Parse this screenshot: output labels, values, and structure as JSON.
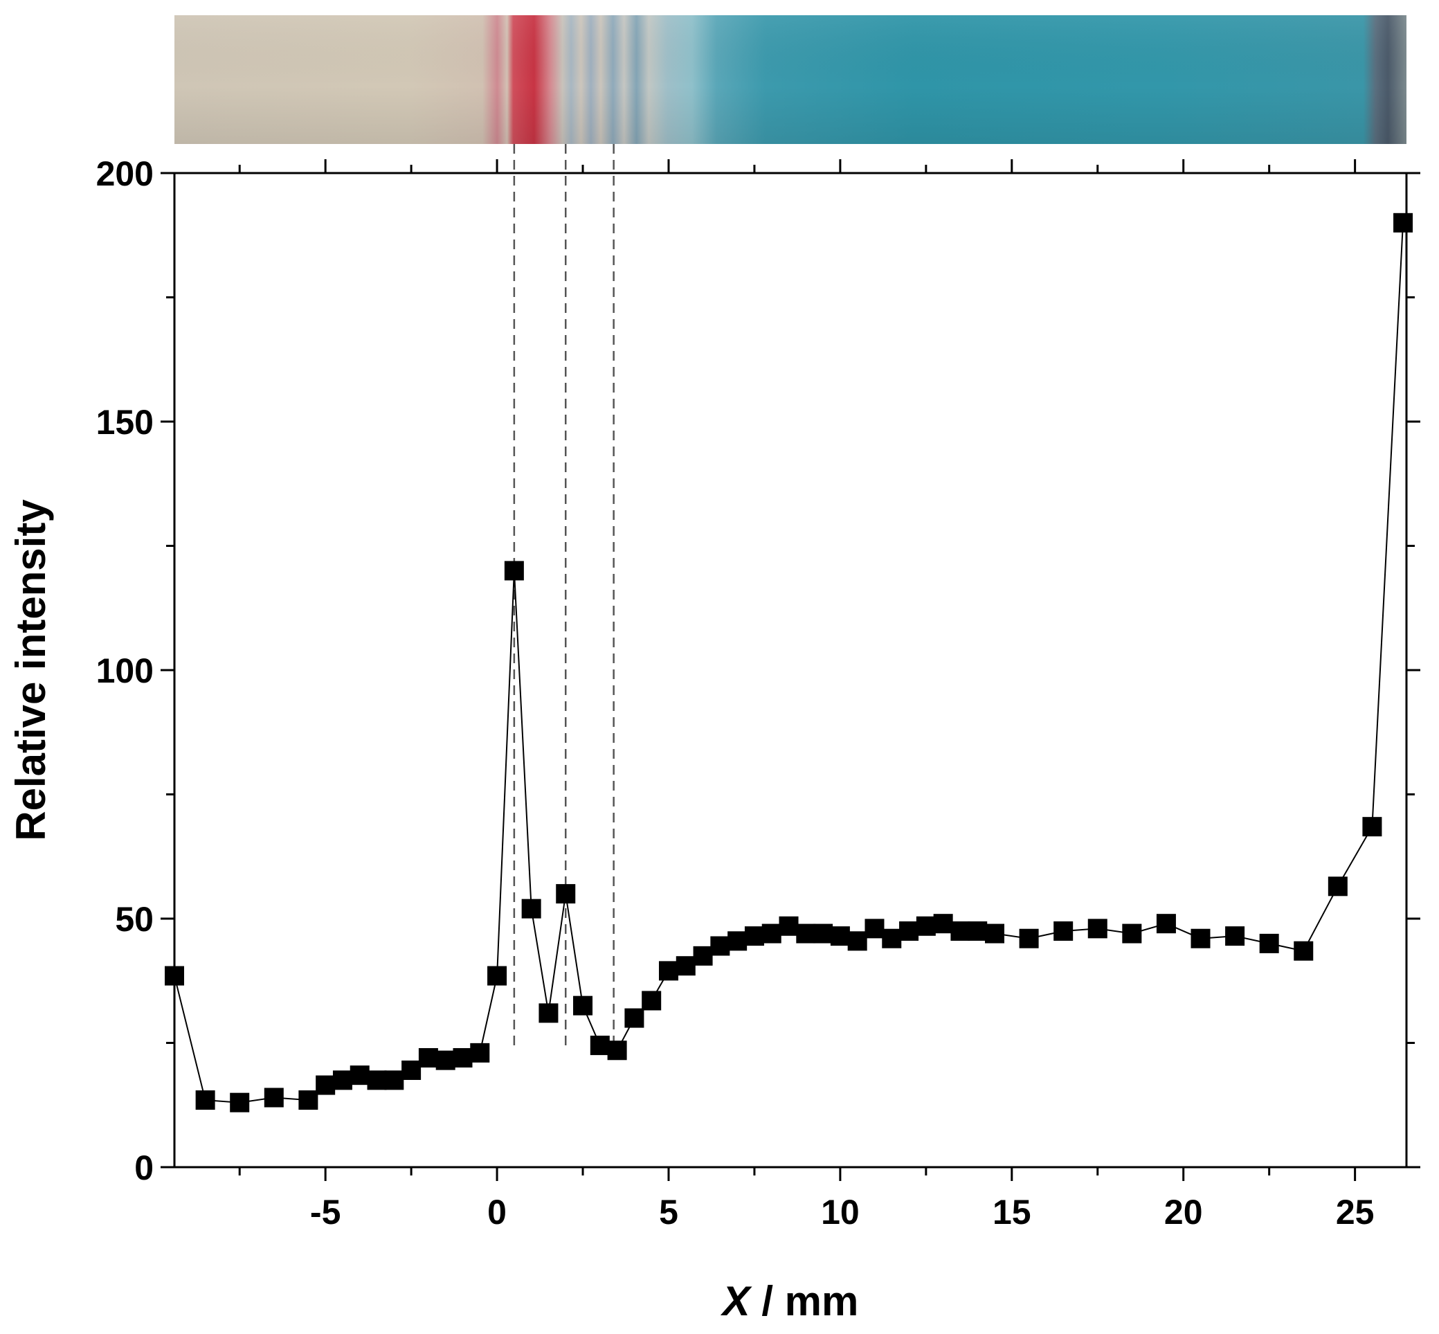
{
  "chart_data": {
    "type": "scatter",
    "title": "",
    "xlabel_var": "X",
    "xlabel_unit": " / mm",
    "ylabel": "Relative intensity",
    "xlim": [
      -9.4,
      26.5
    ],
    "ylim": [
      0,
      200
    ],
    "x_ticks": [
      -5,
      0,
      5,
      10,
      15,
      20,
      25
    ],
    "x_tick_labels": [
      "-5",
      "0",
      "5",
      "10",
      "15",
      "20",
      "25"
    ],
    "y_ticks": [
      0,
      50,
      100,
      150,
      200
    ],
    "y_tick_labels": [
      "0",
      "50",
      "100",
      "150",
      "200"
    ],
    "grid": false,
    "legend": "none",
    "marker": "square",
    "marker_color": "#000000",
    "line_color": "#000000",
    "reference_lines_x": [
      0.5,
      2.0,
      3.4
    ],
    "strip_image": "test strip photo: pale beige zone, red band near x=0.5 mm, blue zone from about x=4 mm to the end",
    "strip_colors": {
      "beige": "#cfc7b5",
      "red": "#c9303d",
      "blue": "#2d96a8"
    },
    "series": [
      {
        "x": [
          -9.4,
          -8.5,
          -7.5,
          -6.5,
          -5.5,
          -5.0,
          -4.5,
          -4.0,
          -3.5,
          -3.0,
          -2.5,
          -2.0,
          -1.5,
          -1.0,
          -0.5,
          0.0,
          0.5,
          1.0,
          1.5,
          2.0,
          2.5,
          3.0,
          3.5,
          4.0,
          4.5,
          5.0,
          5.5,
          6.0,
          6.5,
          7.0,
          7.5,
          8.0,
          8.5,
          9.0,
          9.5,
          10.0,
          10.5,
          11.0,
          11.5,
          12.0,
          12.5,
          13.0,
          13.5,
          14.0,
          14.5,
          15.5,
          16.5,
          17.5,
          18.5,
          19.5,
          20.5,
          21.5,
          22.5,
          23.5,
          24.5,
          25.5,
          26.4
        ],
        "y": [
          38.5,
          13.5,
          13.0,
          14.0,
          13.5,
          16.5,
          17.5,
          18.5,
          17.5,
          17.5,
          19.5,
          22.0,
          21.5,
          22.0,
          23.0,
          38.5,
          120.0,
          52.0,
          31.0,
          55.0,
          32.5,
          24.5,
          23.5,
          30.0,
          33.5,
          39.5,
          40.5,
          42.5,
          44.5,
          45.5,
          46.5,
          47.0,
          48.5,
          47.0,
          47.0,
          46.5,
          45.5,
          48.0,
          46.0,
          47.5,
          48.5,
          49.0,
          47.5,
          47.5,
          47.0,
          46.0,
          47.5,
          48.0,
          47.0,
          49.0,
          46.0,
          46.5,
          45.0,
          43.5,
          56.5,
          68.5,
          190.0
        ]
      }
    ]
  }
}
